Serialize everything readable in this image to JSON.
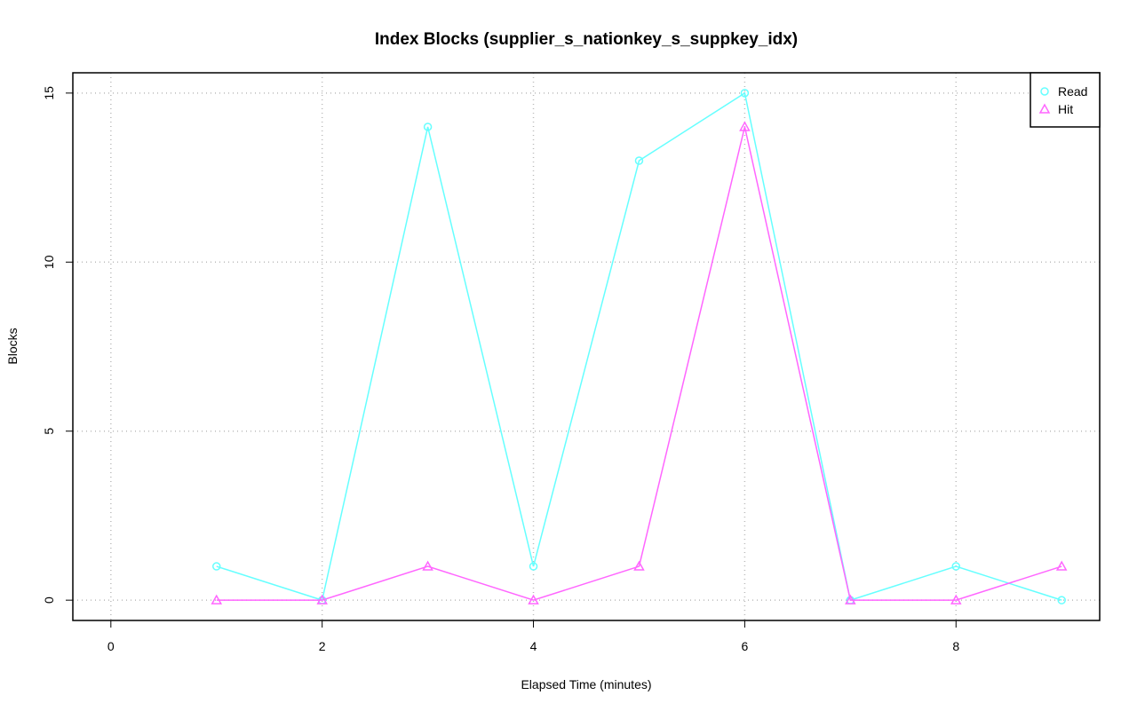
{
  "chart_data": {
    "type": "line",
    "title": "Index Blocks (supplier_s_nationkey_s_suppkey_idx)",
    "xlabel": "Elapsed Time (minutes)",
    "ylabel": "Blocks",
    "xlim": [
      0,
      9
    ],
    "ylim": [
      0,
      15
    ],
    "xticks": [
      0,
      2,
      4,
      6,
      8
    ],
    "yticks": [
      0,
      5,
      10,
      15
    ],
    "grid": true,
    "legend_position": "top-right",
    "x": [
      1,
      2,
      3,
      4,
      5,
      6,
      7,
      8,
      9
    ],
    "series": [
      {
        "name": "Read",
        "values": [
          1,
          0,
          14,
          1,
          13,
          15,
          0,
          1,
          0
        ],
        "color": "#66FFFF",
        "marker": "circle"
      },
      {
        "name": "Hit",
        "values": [
          0,
          0,
          1,
          0,
          1,
          14,
          0,
          0,
          1
        ],
        "color": "#FF66FF",
        "marker": "triangle"
      }
    ]
  }
}
